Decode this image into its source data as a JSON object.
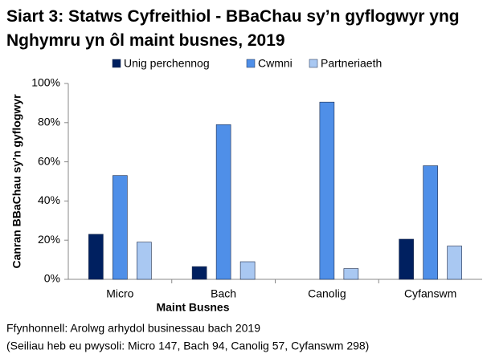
{
  "chart_data": {
    "type": "bar",
    "title": "Siart 3: Statws Cyfreithiol - BBaChau sy’n gyflogwyr yng Nghymru yn ôl maint busnes, 2019",
    "x_label": "Maint Busnes",
    "y_label": "Canran BBaChau sy’n gyflogwyr",
    "source": "Ffynhonnell: Arolwg arhydol businessau bach 2019",
    "note": "(Seiliau heb eu pwysoli: Micro 147, Bach 94, Canolig 57, Cyfanswm 298)",
    "categories": [
      "Micro",
      "Bach",
      "Canolig",
      "Cyfanswm"
    ],
    "series": [
      {
        "name": "Unig perchennog",
        "color": "#002060",
        "values": [
          23,
          6.5,
          0,
          20.5
        ]
      },
      {
        "name": "Cwmni",
        "color": "#4f8fe8",
        "values": [
          53,
          79,
          90.5,
          58
        ]
      },
      {
        "name": "Partneriaeth",
        "color": "#a9c8f2",
        "values": [
          19,
          9,
          5.5,
          17
        ]
      }
    ],
    "ylim": [
      0,
      100
    ],
    "yticks": [
      {
        "value": 0,
        "label": "0%"
      },
      {
        "value": 20,
        "label": "20%"
      },
      {
        "value": 40,
        "label": "40%"
      },
      {
        "value": 60,
        "label": "60%"
      },
      {
        "value": 80,
        "label": "80%"
      },
      {
        "value": 100,
        "label": "100%"
      }
    ],
    "legend": "top"
  }
}
